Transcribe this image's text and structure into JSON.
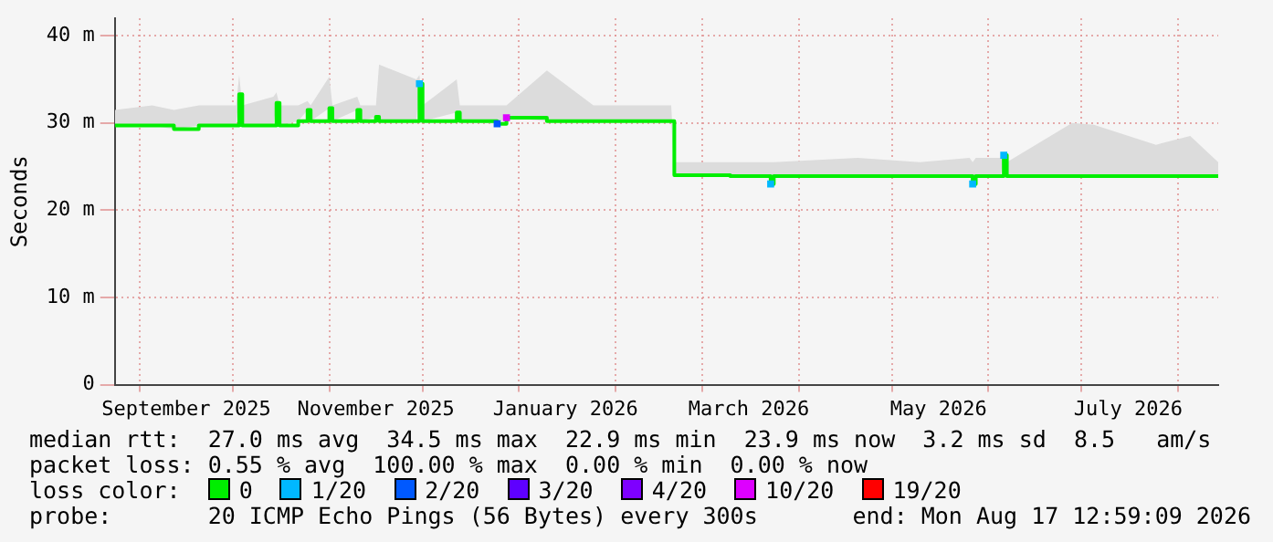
{
  "chart_data": {
    "type": "line",
    "ylabel": "Seconds",
    "xlim": [
      "2025-08-24",
      "2026-08-14"
    ],
    "xticks": [
      {
        "value": "2025-09-01",
        "label": null
      },
      {
        "value": "2025-09-16",
        "label": "September 2025"
      },
      {
        "value": "2025-10-01",
        "label": null
      },
      {
        "value": "2025-11-01",
        "label": null
      },
      {
        "value": "2025-11-16",
        "label": "November 2025"
      },
      {
        "value": "2025-12-01",
        "label": null
      },
      {
        "value": "2026-01-01",
        "label": null
      },
      {
        "value": "2026-01-16",
        "label": "January 2026"
      },
      {
        "value": "2026-02-01",
        "label": null
      },
      {
        "value": "2026-03-01",
        "label": null
      },
      {
        "value": "2026-03-16",
        "label": "March 2026"
      },
      {
        "value": "2026-04-01",
        "label": null
      },
      {
        "value": "2026-05-01",
        "label": null
      },
      {
        "value": "2026-05-16",
        "label": "May 2026"
      },
      {
        "value": "2026-06-01",
        "label": null
      },
      {
        "value": "2026-07-01",
        "label": null
      },
      {
        "value": "2026-07-16",
        "label": "July 2026"
      },
      {
        "value": "2026-08-01",
        "label": null
      }
    ],
    "ylim": [
      0,
      42
    ],
    "yticks": [
      0,
      {
        "value": 10,
        "label": "10 m"
      },
      {
        "value": 20,
        "label": "20 m"
      },
      {
        "value": 30,
        "label": "30 m"
      },
      {
        "value": 40,
        "label": "40 m"
      }
    ],
    "grid": true,
    "legend": "bottom",
    "legend_title": "loss color:",
    "marker": "none",
    "line_style": "solid",
    "x": [
      "2025-08-24",
      "2025-09-05",
      "2025-09-12",
      "2025-09-20",
      "2025-10-02",
      "2025-10-03",
      "2025-10-04",
      "2025-10-14",
      "2025-10-15",
      "2025-10-16",
      "2025-10-22",
      "2025-10-25",
      "2025-10-26",
      "2025-11-01",
      "2025-11-02",
      "2025-11-10",
      "2025-11-11",
      "2025-11-16",
      "2025-11-17",
      "2025-11-29",
      "2025-11-30",
      "2025-12-01",
      "2025-12-12",
      "2025-12-13",
      "2025-12-25",
      "2025-12-28",
      "2026-01-10",
      "2026-01-25",
      "2026-02-10",
      "2026-02-19",
      "2026-02-20",
      "2026-03-10",
      "2026-03-22",
      "2026-03-23",
      "2026-03-24",
      "2026-04-20",
      "2026-05-10",
      "2026-05-26",
      "2026-05-27",
      "2026-05-28",
      "2026-06-05",
      "2026-06-06",
      "2026-06-07",
      "2026-06-28",
      "2026-07-05",
      "2026-07-25",
      "2026-08-05",
      "2026-08-14"
    ],
    "series": [
      {
        "name": "0",
        "color": "#00ee00",
        "values": [
          29.7,
          29.7,
          29.3,
          29.7,
          29.7,
          33.3,
          29.7,
          29.7,
          32.3,
          29.7,
          30.2,
          31.5,
          30.2,
          31.7,
          30.2,
          31.5,
          30.2,
          30.7,
          30.2,
          30.2,
          34.5,
          30.2,
          31.2,
          30.2,
          29.9,
          30.6,
          30.2,
          30.2,
          30.2,
          30.2,
          24.0,
          23.9,
          23.9,
          23.0,
          23.9,
          23.9,
          23.9,
          23.9,
          23.0,
          23.9,
          23.9,
          26.3,
          23.9,
          23.9,
          23.9,
          23.9,
          23.9,
          23.9
        ],
        "lower": [
          29.7,
          29.7,
          29.3,
          29.7,
          29.7,
          33.3,
          29.7,
          29.7,
          32.3,
          29.7,
          30.2,
          31.5,
          30.2,
          31.7,
          30.2,
          31.5,
          30.2,
          30.7,
          30.2,
          30.2,
          34.5,
          30.2,
          31.2,
          30.2,
          29.9,
          30.6,
          30.2,
          30.2,
          30.2,
          30.2,
          24.0,
          23.9,
          23.9,
          23.0,
          23.9,
          23.9,
          23.9,
          23.9,
          23.0,
          23.9,
          23.9,
          26.3,
          23.9,
          23.9,
          23.9,
          23.9,
          23.9,
          23.9
        ],
        "upper": [
          31.5,
          32,
          31.5,
          32,
          32,
          35.5,
          32,
          33,
          33.5,
          32,
          32,
          32.5,
          32,
          35.3,
          32,
          33,
          32,
          32,
          36.7,
          35,
          35.5,
          32,
          35,
          32,
          32,
          32,
          36,
          32,
          32,
          32,
          25.5,
          25.5,
          25.5,
          25.5,
          25.5,
          26,
          25.5,
          26,
          25.5,
          26,
          26,
          26.5,
          25.5,
          30,
          29.8,
          27.5,
          28.5,
          25.5
        ]
      },
      {
        "name": "1/20",
        "color": "#00b8ff",
        "type": "scatter",
        "marker": "square",
        "x": [
          "2025-11-30",
          "2026-03-23",
          "2026-05-27",
          "2026-06-06"
        ],
        "values": [
          34.5,
          23.0,
          23.0,
          26.3
        ]
      },
      {
        "name": "2/20",
        "color": "#0059ff",
        "type": "scatter",
        "marker": "square",
        "x": [
          "2025-12-25"
        ],
        "values": [
          29.9
        ]
      },
      {
        "name": "3/20",
        "color": "#5e00ff",
        "type": "scatter",
        "values": [
          null,
          null,
          null,
          null,
          null,
          null,
          null,
          null,
          null,
          null,
          null,
          null,
          null,
          null,
          null,
          null,
          null,
          null,
          null,
          null,
          null,
          null,
          null,
          null,
          null,
          null,
          null,
          null,
          null,
          null,
          null,
          null,
          null,
          null,
          null,
          null,
          null,
          null,
          null,
          null,
          null,
          null,
          null,
          null,
          null,
          null,
          null,
          null
        ]
      },
      {
        "name": "4/20",
        "color": "#7e00ff",
        "type": "scatter",
        "values": [
          null,
          null,
          null,
          null,
          null,
          null,
          null,
          null,
          null,
          null,
          null,
          null,
          null,
          null,
          null,
          null,
          null,
          null,
          null,
          null,
          null,
          null,
          null,
          null,
          null,
          null,
          null,
          null,
          null,
          null,
          null,
          null,
          null,
          null,
          null,
          null,
          null,
          null,
          null,
          null,
          null,
          null,
          null,
          null,
          null,
          null,
          null,
          null
        ]
      },
      {
        "name": "10/20",
        "color": "#dd00ff",
        "type": "scatter",
        "marker": "square",
        "x": [
          "2025-12-28"
        ],
        "values": [
          30.6
        ]
      },
      {
        "name": "19/20",
        "color": "#ff0000",
        "type": "scatter",
        "values": [
          null,
          null,
          null,
          null,
          null,
          null,
          null,
          null,
          null,
          null,
          null,
          null,
          null,
          null,
          null,
          null,
          null,
          null,
          null,
          null,
          null,
          null,
          null,
          null,
          null,
          null,
          null,
          null,
          null,
          null,
          null,
          null,
          null,
          null,
          null,
          null,
          null,
          null,
          null,
          null,
          null,
          null,
          null,
          null,
          null,
          null,
          null,
          null
        ]
      }
    ],
    "annotations": [
      "median rtt:  27.0 ms avg  34.5 ms max  22.9 ms min  23.9 ms now  3.2 ms sd  8.5   am/s",
      "packet loss: 0.55 % avg  100.00 % max  0.00 % min  0.00 % now",
      "probe:       20 ICMP Echo Pings (56 Bytes) every 300s",
      "end: Mon Aug 17 12:59:09 2026"
    ]
  }
}
